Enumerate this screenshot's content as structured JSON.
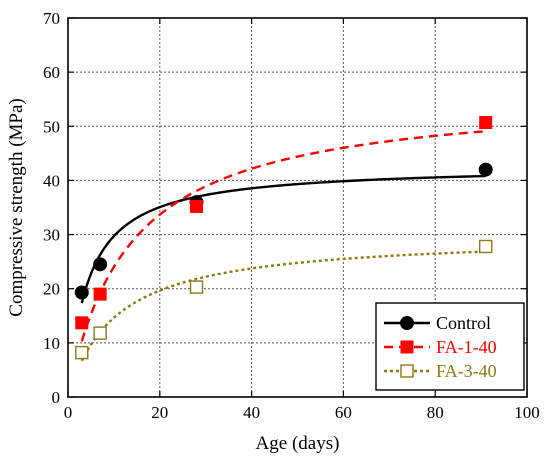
{
  "chart_data": {
    "type": "line",
    "title": "",
    "xlabel": "Age (days)",
    "ylabel": "Compressive strength (MPa)",
    "xlim": [
      0,
      100
    ],
    "ylim": [
      0,
      70
    ],
    "x_ticks": [
      0,
      20,
      40,
      60,
      80,
      100
    ],
    "y_ticks": [
      0,
      10,
      20,
      30,
      40,
      50,
      60,
      70
    ],
    "grid": true,
    "legend_position": "bottom-right",
    "series": [
      {
        "name": "Control",
        "color": "#000000",
        "line_style": "solid",
        "marker": "filled-circle",
        "x": [
          3,
          7,
          28,
          91
        ],
        "y": [
          19.3,
          24.5,
          36.0,
          42.0
        ]
      },
      {
        "name": "FA-1-40",
        "color": "#ff0000",
        "line_style": "dashed",
        "marker": "filled-square",
        "x": [
          3,
          7,
          28,
          91
        ],
        "y": [
          13.7,
          19.0,
          35.2,
          50.7
        ]
      },
      {
        "name": "FA-3-40",
        "color": "#8b7a10",
        "line_style": "dotted",
        "marker": "open-square",
        "x": [
          3,
          7,
          28,
          91
        ],
        "y": [
          8.2,
          11.8,
          20.3,
          27.8
        ]
      }
    ]
  }
}
